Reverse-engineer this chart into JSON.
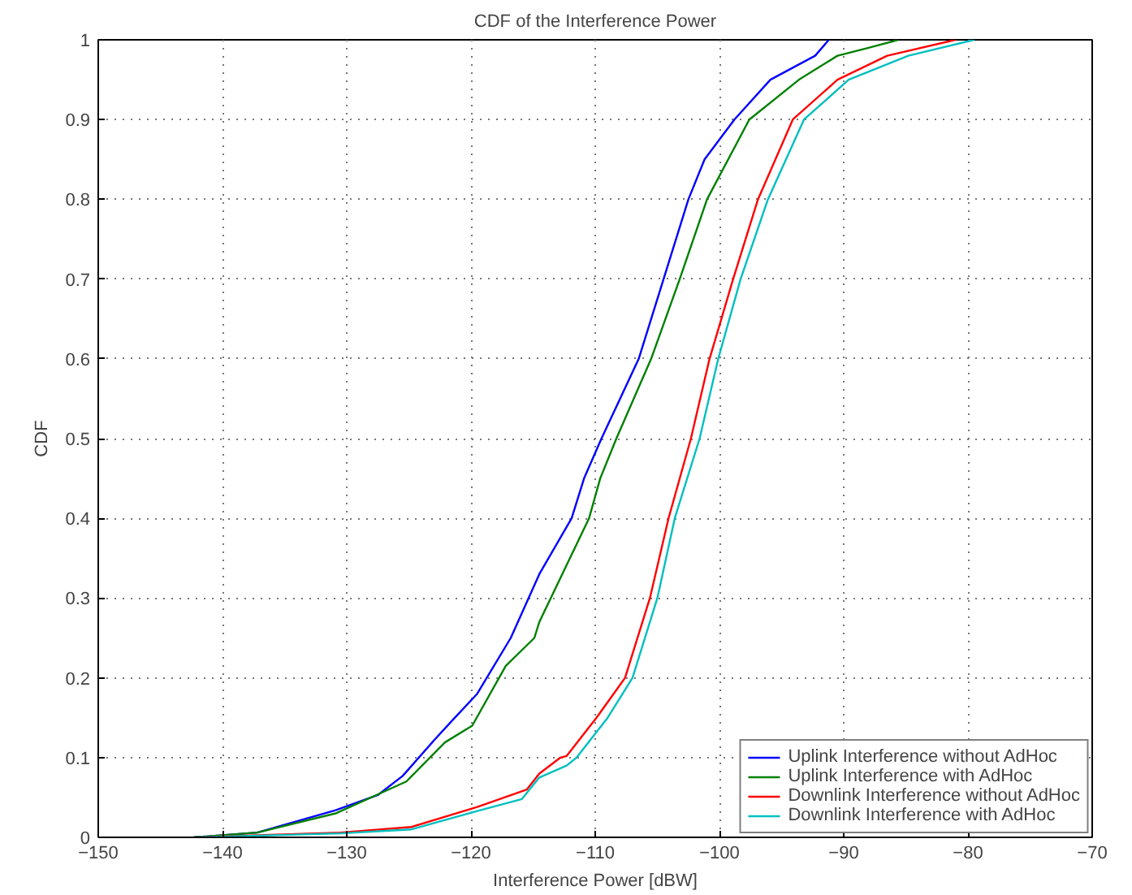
{
  "chart_data": {
    "type": "line",
    "title": "CDF of the Interference Power",
    "xlabel": "Interference Power [dBW]",
    "ylabel": "CDF",
    "xlim": [
      -150,
      -70
    ],
    "ylim": [
      0,
      1
    ],
    "xticks": [
      -150,
      -140,
      -130,
      -120,
      -110,
      -100,
      -90,
      -80,
      -70
    ],
    "yticks": [
      0,
      0.1,
      0.2,
      0.3,
      0.4,
      0.5,
      0.6,
      0.7,
      0.8,
      0.9,
      1
    ],
    "grid": true,
    "legend": "bottom right",
    "line_style": "solid",
    "marker": "none",
    "series": [
      {
        "name": "Uplink Interference without AdHoc",
        "color": "#0000ff",
        "x": [
          -142.3,
          -137.2,
          -130.9,
          -127.5,
          -125.5,
          -122.9,
          -121.6,
          -119.5,
          -116.8,
          -114.5,
          -111.9,
          -110.9,
          -109.5,
          -106.5,
          -104.5,
          -102.5,
          -101.2,
          -98.8,
          -95.9,
          -92.3,
          -91.2
        ],
        "values": [
          0,
          0.006,
          0.034,
          0.053,
          0.077,
          0.123,
          0.145,
          0.18,
          0.25,
          0.33,
          0.4,
          0.45,
          0.5,
          0.6,
          0.7,
          0.8,
          0.85,
          0.9,
          0.95,
          0.98,
          1
        ]
      },
      {
        "name": "Uplink Interference with AdHoc",
        "color": "#008000",
        "x": [
          -142.3,
          -137.2,
          -130.9,
          -125.2,
          -122.1,
          -119.9,
          -117.2,
          -114.9,
          -114.5,
          -110.5,
          -109.6,
          -108.3,
          -105.5,
          -103.2,
          -101,
          -97.6,
          -93.6,
          -90.5,
          -88,
          -85.6
        ],
        "values": [
          0,
          0.006,
          0.03,
          0.07,
          0.119,
          0.14,
          0.215,
          0.25,
          0.27,
          0.4,
          0.45,
          0.5,
          0.6,
          0.7,
          0.8,
          0.9,
          0.95,
          0.98,
          0.99,
          1
        ]
      },
      {
        "name": "Downlink Interference without AdHoc",
        "color": "#ff0000",
        "x": [
          -142.3,
          -130.5,
          -124.8,
          -119.5,
          -115.5,
          -114.5,
          -112.8,
          -112.3,
          -109.9,
          -107.6,
          -105.6,
          -104.1,
          -102.3,
          -100.8,
          -98.9,
          -96.9,
          -94.1,
          -90.5,
          -86.5,
          -81
        ],
        "values": [
          0,
          0.006,
          0.013,
          0.038,
          0.06,
          0.08,
          0.1,
          0.102,
          0.15,
          0.2,
          0.3,
          0.4,
          0.5,
          0.6,
          0.7,
          0.8,
          0.9,
          0.95,
          0.98,
          1
        ]
      },
      {
        "name": "Downlink Interference with AdHoc",
        "color": "#00bfbf",
        "x": [
          -142.3,
          -130.5,
          -124.8,
          -119.5,
          -115.9,
          -114.5,
          -112.3,
          -111.5,
          -109,
          -107,
          -105,
          -103.6,
          -101.6,
          -100.1,
          -98.3,
          -96.1,
          -93.2,
          -89.6,
          -84.8,
          -79.5
        ],
        "values": [
          0,
          0.005,
          0.01,
          0.033,
          0.048,
          0.075,
          0.09,
          0.1,
          0.15,
          0.2,
          0.3,
          0.4,
          0.5,
          0.6,
          0.7,
          0.8,
          0.9,
          0.95,
          0.98,
          1
        ]
      }
    ]
  }
}
